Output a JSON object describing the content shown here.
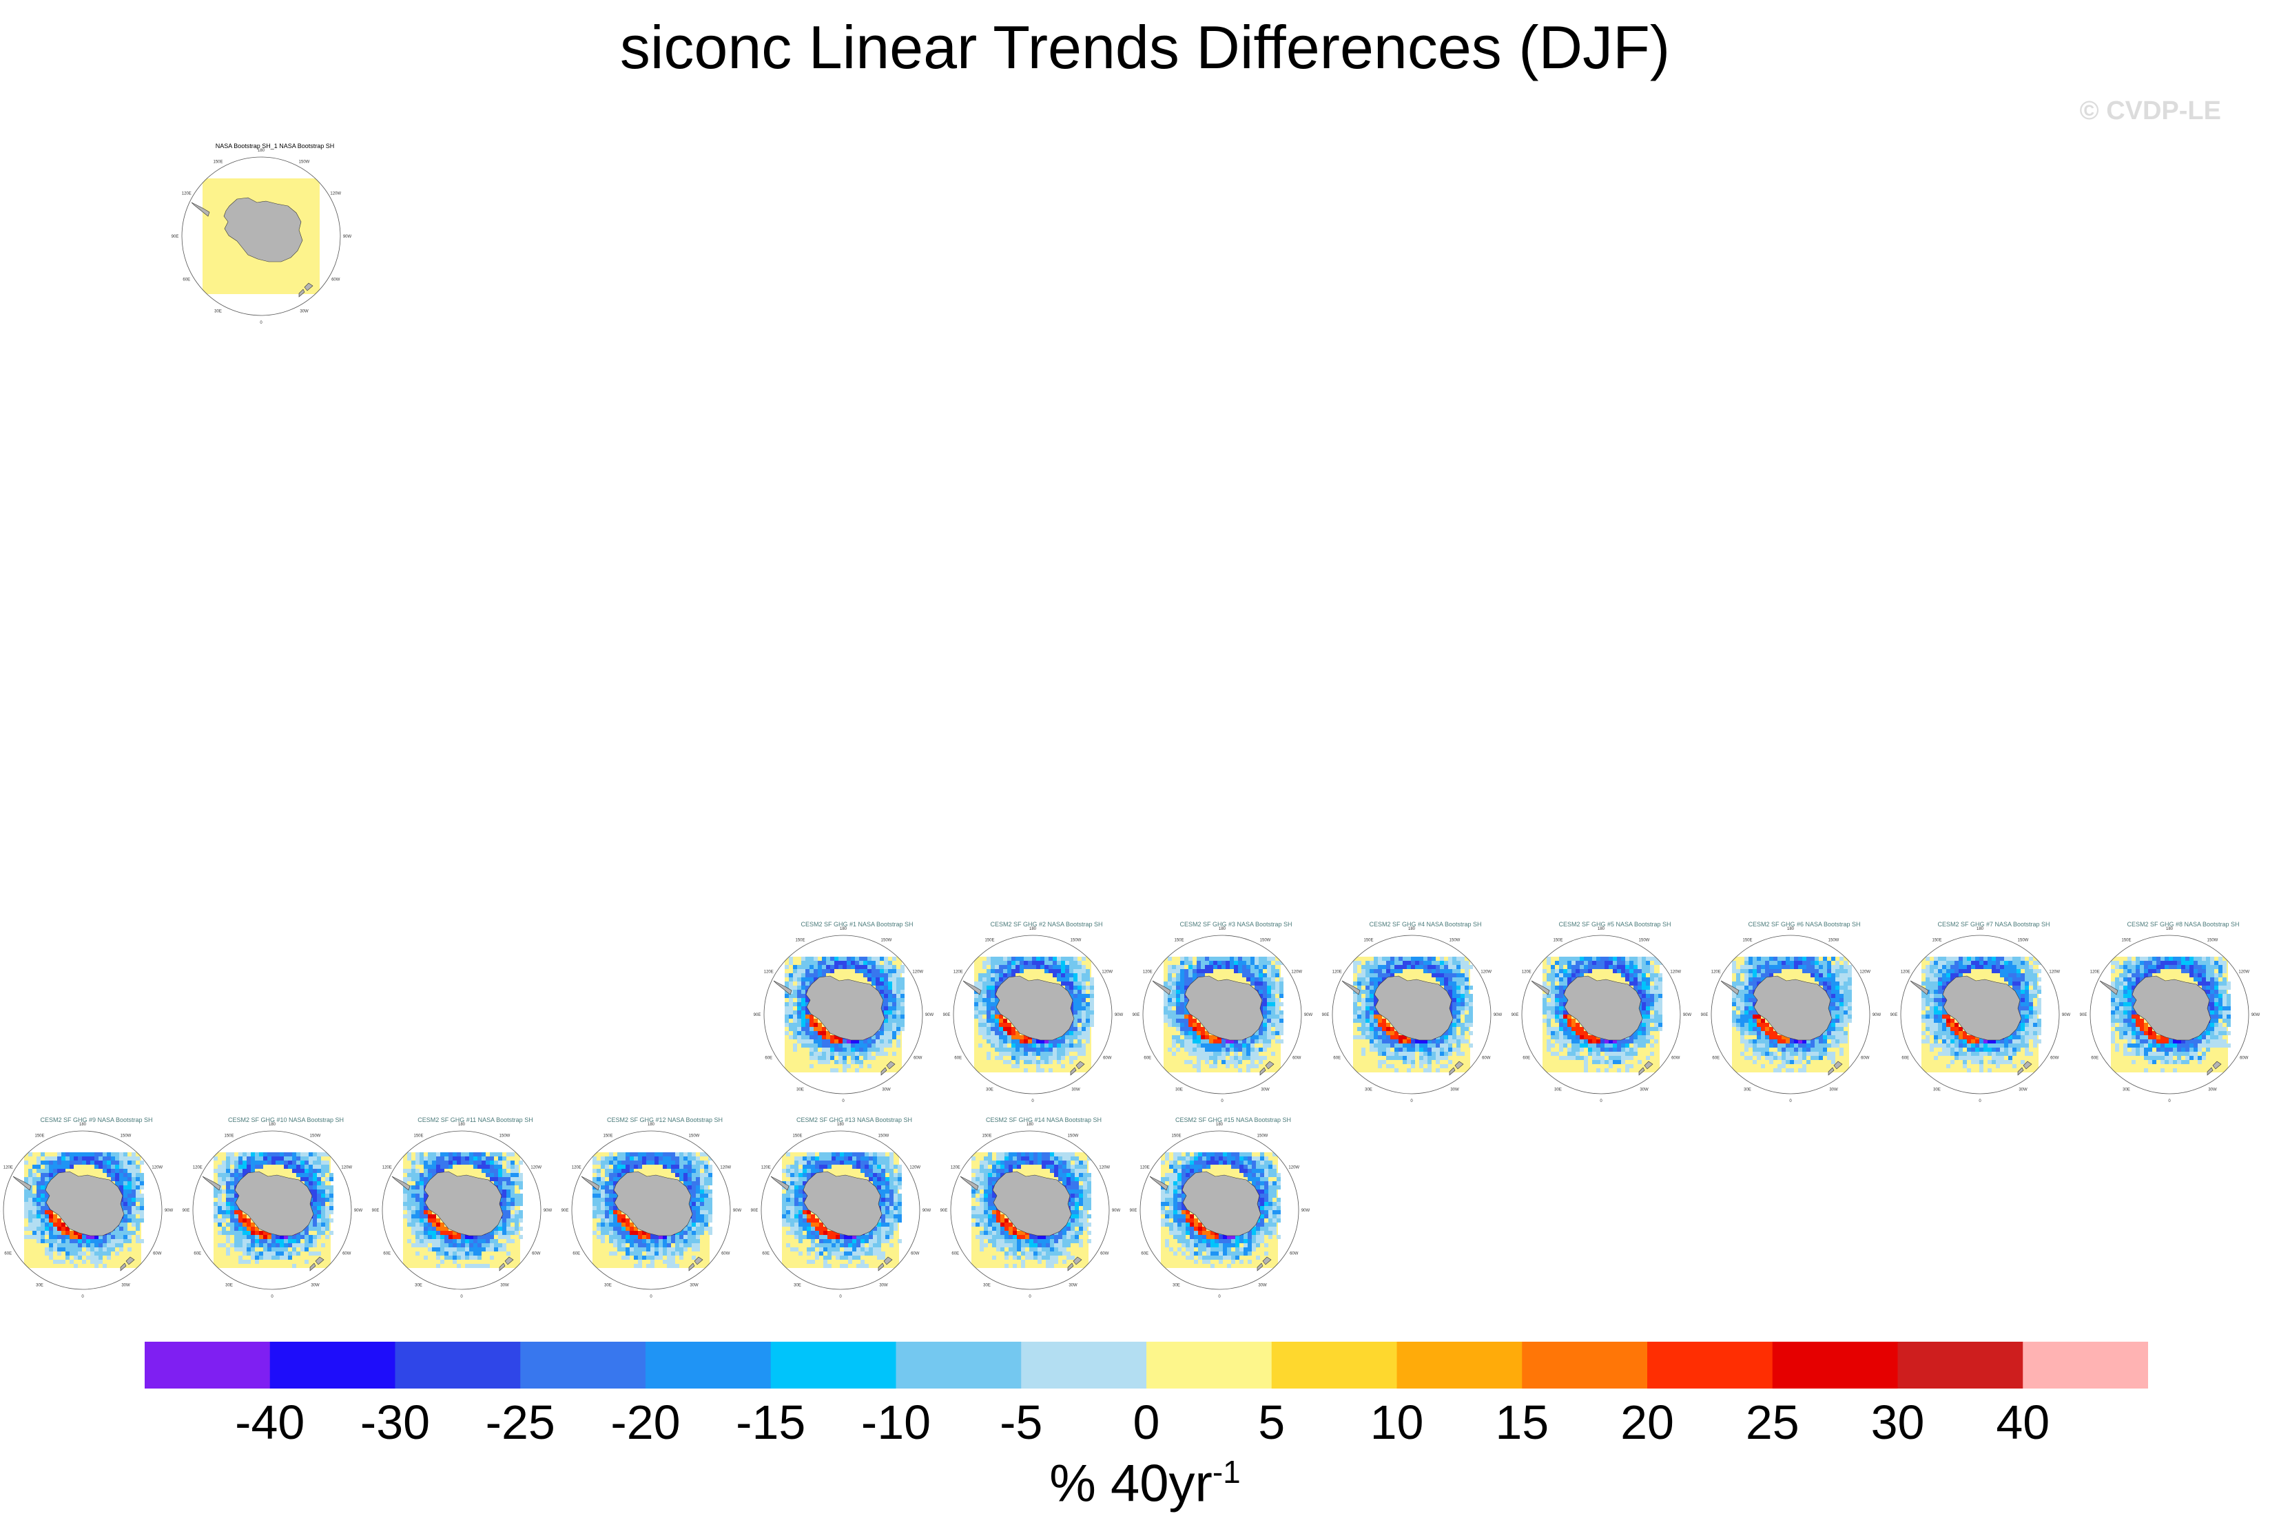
{
  "title": "siconc Linear Trends Differences (DJF)",
  "watermark": "© CVDP-LE",
  "colors": {
    "land": "#b4b4b4",
    "ocean_zero": "#fdf38c",
    "circle": "#555555",
    "panel_title": "#4a7a7a",
    "obs_title": "#000000"
  },
  "panels": [
    {
      "title": "NASA Bootstrap SH_1 NASA Bootstrap SH",
      "kind": "obs"
    },
    {
      "title": "CESM2 SF GHG #1 NASA Bootstrap SH",
      "kind": "model"
    },
    {
      "title": "CESM2 SF GHG #2 NASA Bootstrap SH",
      "kind": "model"
    },
    {
      "title": "CESM2 SF GHG #3 NASA Bootstrap SH",
      "kind": "model"
    },
    {
      "title": "CESM2 SF GHG #4 NASA Bootstrap SH",
      "kind": "model"
    },
    {
      "title": "CESM2 SF GHG #5 NASA Bootstrap SH",
      "kind": "model"
    },
    {
      "title": "CESM2 SF GHG #6 NASA Bootstrap SH",
      "kind": "model"
    },
    {
      "title": "CESM2 SF GHG #7 NASA Bootstrap SH",
      "kind": "model"
    },
    {
      "title": "CESM2 SF GHG #8 NASA Bootstrap SH",
      "kind": "model"
    },
    {
      "title": "CESM2 SF GHG #9 NASA Bootstrap SH",
      "kind": "model"
    },
    {
      "title": "CESM2 SF GHG #10 NASA Bootstrap SH",
      "kind": "model"
    },
    {
      "title": "CESM2 SF GHG #11 NASA Bootstrap SH",
      "kind": "model"
    },
    {
      "title": "CESM2 SF GHG #12 NASA Bootstrap SH",
      "kind": "model"
    },
    {
      "title": "CESM2 SF GHG #13 NASA Bootstrap SH",
      "kind": "model"
    },
    {
      "title": "CESM2 SF GHG #14 NASA Bootstrap SH",
      "kind": "model"
    },
    {
      "title": "CESM2 SF GHG #15 NASA Bootstrap SH",
      "kind": "model"
    }
  ],
  "map_labels": [
    "0",
    "30E",
    "60E",
    "90E",
    "120E",
    "150E",
    "180",
    "150W",
    "120W",
    "90W",
    "60W",
    "30W"
  ],
  "colorbar": {
    "colors": [
      "#7f1ff2",
      "#1e0dfa",
      "#2f46e8",
      "#3877ee",
      "#1f94f5",
      "#00c4fb",
      "#74c8f0",
      "#b3def2",
      "#fdf68b",
      "#fed82e",
      "#ffab0a",
      "#ff7607",
      "#ff2e02",
      "#e50000",
      "#ce1e1e",
      "#ffb3b3"
    ],
    "labels": [
      "-40",
      "-30",
      "-25",
      "-20",
      "-15",
      "-10",
      "-5",
      "0",
      "5",
      "10",
      "15",
      "20",
      "25",
      "30",
      "40"
    ],
    "units": "% 40yr",
    "units_exp": "-1"
  },
  "chart_data": {
    "type": "heatmap",
    "title": "siconc Linear Trends Differences (DJF)",
    "panel_count": 16,
    "contour_levels": [
      -40,
      -30,
      -25,
      -20,
      -15,
      -10,
      -5,
      0,
      5,
      10,
      15,
      20,
      25,
      30,
      40
    ],
    "units": "% 40yr-1"
  }
}
